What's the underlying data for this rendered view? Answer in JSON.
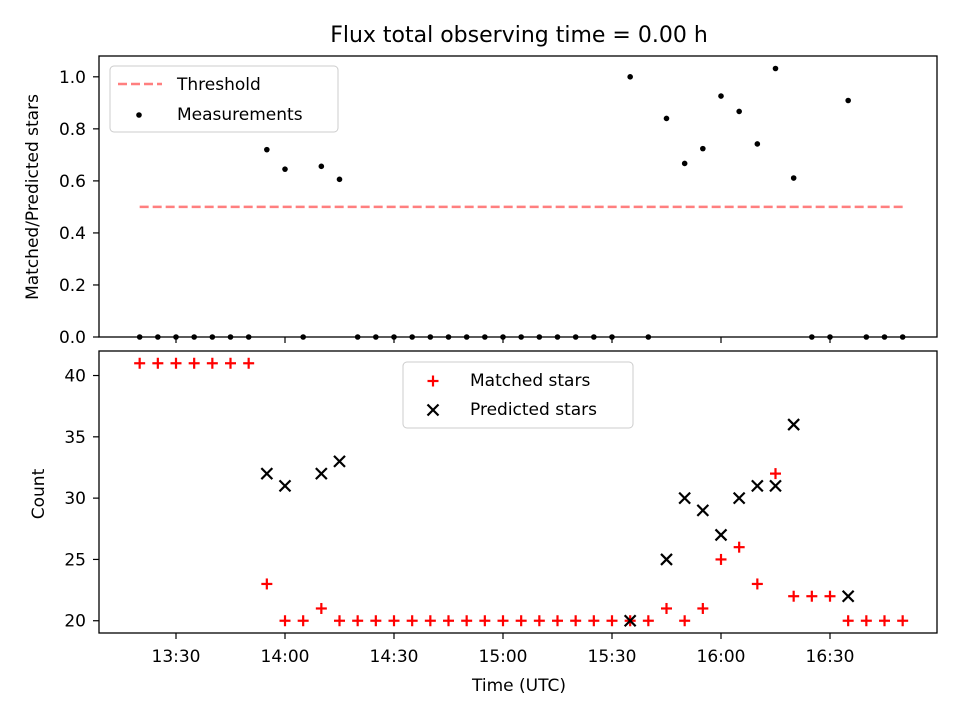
{
  "chart_data": [
    {
      "type": "scatter",
      "title": "Flux total observing time = 0.00 h",
      "xlabel": "",
      "ylabel": "Matched/Predicted stars",
      "ylim": [
        0,
        1.08
      ],
      "yticks": [
        "0.0",
        "0.2",
        "0.4",
        "0.6",
        "0.8",
        "1.0"
      ],
      "legend": {
        "position": "top-left"
      },
      "threshold": {
        "name": "Threshold",
        "value": 0.5,
        "x_start": "13:20",
        "x_end": "16:50",
        "color": "#ff7f7f",
        "style": "dashed"
      },
      "measurements": {
        "name": "Measurements",
        "color": "#000000",
        "x": [
          "13:20",
          "13:25",
          "13:30",
          "13:35",
          "13:40",
          "13:45",
          "13:50",
          "13:55",
          "14:00",
          "14:05",
          "14:10",
          "14:15",
          "14:20",
          "14:25",
          "14:30",
          "14:35",
          "14:40",
          "14:45",
          "14:50",
          "14:55",
          "15:00",
          "15:05",
          "15:10",
          "15:15",
          "15:20",
          "15:25",
          "15:30",
          "15:35",
          "15:40",
          "15:45",
          "15:50",
          "15:55",
          "16:00",
          "16:05",
          "16:10",
          "16:15",
          "16:20",
          "16:25",
          "16:30",
          "16:35",
          "16:40",
          "16:45",
          "16:50"
        ],
        "y": [
          0,
          0,
          0,
          0,
          0,
          0,
          0,
          0.72,
          0.645,
          0,
          0.656,
          0.606,
          0,
          0,
          0,
          0,
          0,
          0,
          0,
          0,
          0,
          0,
          0,
          0,
          0,
          0,
          0,
          1.0,
          0,
          0.84,
          0.667,
          0.724,
          0.926,
          0.867,
          0.742,
          1.032,
          0.611,
          0,
          0,
          0.909,
          0,
          0,
          0
        ]
      }
    },
    {
      "type": "scatter",
      "title": "",
      "xlabel": "Time (UTC)",
      "ylabel": "Count",
      "ylim": [
        19,
        42
      ],
      "yticks": [
        "20",
        "25",
        "30",
        "35",
        "40"
      ],
      "xticks": [
        "13:30",
        "14:00",
        "14:30",
        "15:00",
        "15:30",
        "16:00",
        "16:30"
      ],
      "legend": {
        "position": "top-center"
      },
      "series": [
        {
          "name": "Matched stars",
          "marker": "plus",
          "color": "#ff0000",
          "x": [
            "13:20",
            "13:25",
            "13:30",
            "13:35",
            "13:40",
            "13:45",
            "13:50",
            "13:55",
            "14:00",
            "14:05",
            "14:10",
            "14:15",
            "14:20",
            "14:25",
            "14:30",
            "14:35",
            "14:40",
            "14:45",
            "14:50",
            "14:55",
            "15:00",
            "15:05",
            "15:10",
            "15:15",
            "15:20",
            "15:25",
            "15:30",
            "15:35",
            "15:40",
            "15:45",
            "15:50",
            "15:55",
            "16:00",
            "16:05",
            "16:10",
            "16:15",
            "16:20",
            "16:25",
            "16:30",
            "16:35",
            "16:40",
            "16:45",
            "16:50"
          ],
          "y": [
            41,
            41,
            41,
            41,
            41,
            41,
            41,
            23,
            20,
            20,
            21,
            20,
            20,
            20,
            20,
            20,
            20,
            20,
            20,
            20,
            20,
            20,
            20,
            20,
            20,
            20,
            20,
            20,
            20,
            21,
            20,
            21,
            25,
            26,
            23,
            32,
            22,
            22,
            22,
            20,
            20,
            20,
            20
          ]
        },
        {
          "name": "Predicted stars",
          "marker": "x",
          "color": "#000000",
          "x": [
            "13:55",
            "14:00",
            "14:10",
            "14:15",
            "15:35",
            "15:45",
            "15:50",
            "15:55",
            "16:00",
            "16:05",
            "16:10",
            "16:15",
            "16:20",
            "16:35"
          ],
          "y": [
            32,
            31,
            32,
            33,
            20,
            25,
            30,
            29,
            27,
            30,
            31,
            31,
            36,
            22
          ]
        }
      ]
    }
  ]
}
